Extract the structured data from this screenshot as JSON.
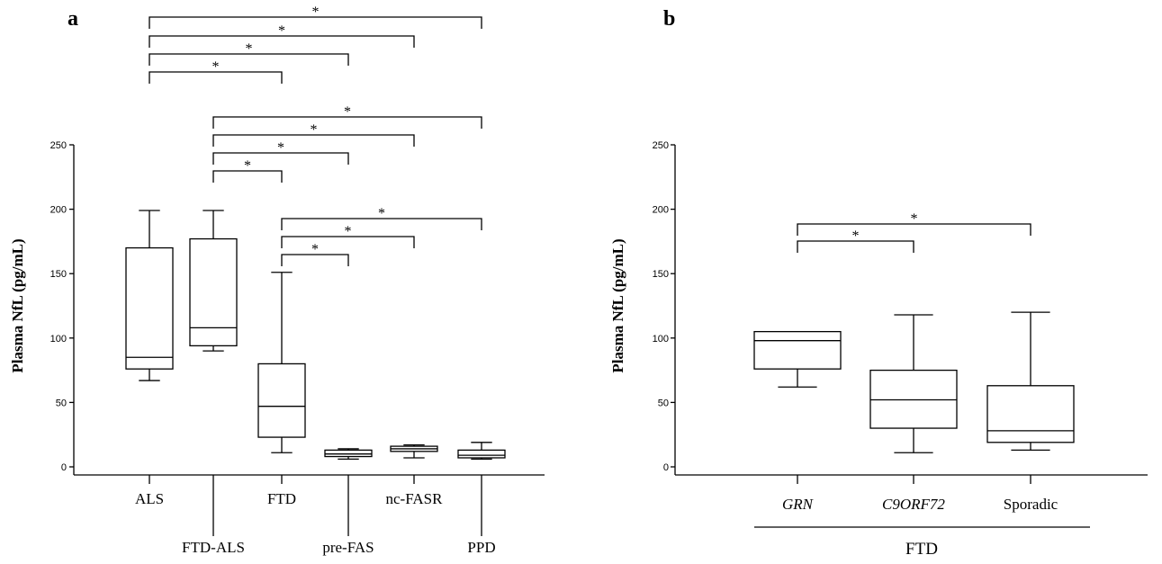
{
  "chart_data": [
    {
      "panel": "a",
      "type": "box",
      "ylabel": "Plasma NfL (pg/mL)",
      "ylim": [
        0,
        250
      ],
      "yticks": [
        0,
        50,
        100,
        150,
        200,
        250
      ],
      "categories": [
        "ALS",
        "FTD-ALS",
        "FTD",
        "pre-FAS",
        "nc-FASR",
        "PPD"
      ],
      "boxes": [
        {
          "min": 67,
          "q1": 76,
          "median": 85,
          "q3": 170,
          "max": 199
        },
        {
          "min": 90,
          "q1": 94,
          "median": 108,
          "q3": 177,
          "max": 199
        },
        {
          "min": 11,
          "q1": 23,
          "median": 47,
          "q3": 80,
          "max": 151
        },
        {
          "min": 6,
          "q1": 8,
          "median": 10,
          "q3": 13,
          "max": 14
        },
        {
          "min": 7,
          "q1": 12,
          "median": 14,
          "q3": 16,
          "max": 17
        },
        {
          "min": 6,
          "q1": 7,
          "median": 9,
          "q3": 13,
          "max": 19
        }
      ],
      "significance": [
        {
          "from": "ALS",
          "to": "PPD",
          "label": "*"
        },
        {
          "from": "ALS",
          "to": "nc-FASR",
          "label": "*"
        },
        {
          "from": "ALS",
          "to": "pre-FAS",
          "label": "*"
        },
        {
          "from": "ALS",
          "to": "FTD",
          "label": "*"
        },
        {
          "from": "FTD-ALS",
          "to": "PPD",
          "label": "*"
        },
        {
          "from": "FTD-ALS",
          "to": "nc-FASR",
          "label": "*"
        },
        {
          "from": "FTD-ALS",
          "to": "pre-FAS",
          "label": "*"
        },
        {
          "from": "FTD-ALS",
          "to": "FTD",
          "label": "*"
        },
        {
          "from": "FTD",
          "to": "PPD",
          "label": "*"
        },
        {
          "from": "FTD",
          "to": "nc-FASR",
          "label": "*"
        },
        {
          "from": "FTD",
          "to": "pre-FAS",
          "label": "*"
        }
      ]
    },
    {
      "panel": "b",
      "type": "box",
      "ylabel": "Plasma NfL (pg/mL)",
      "ylim": [
        0,
        250
      ],
      "yticks": [
        0,
        50,
        100,
        150,
        200,
        250
      ],
      "categories": [
        "GRN",
        "C9ORF72",
        "Sporadic"
      ],
      "italic_categories": [
        "GRN",
        "C9ORF72"
      ],
      "group_label": "FTD",
      "boxes": [
        {
          "min": 62,
          "q1": 76,
          "median": 98,
          "q3": 105,
          "max": 105
        },
        {
          "min": 11,
          "q1": 30,
          "median": 52,
          "q3": 75,
          "max": 118
        },
        {
          "min": 13,
          "q1": 19,
          "median": 28,
          "q3": 63,
          "max": 120
        }
      ],
      "significance": [
        {
          "from": "GRN",
          "to": "Sporadic",
          "label": "*"
        },
        {
          "from": "GRN",
          "to": "C9ORF72",
          "label": "*"
        }
      ]
    }
  ]
}
